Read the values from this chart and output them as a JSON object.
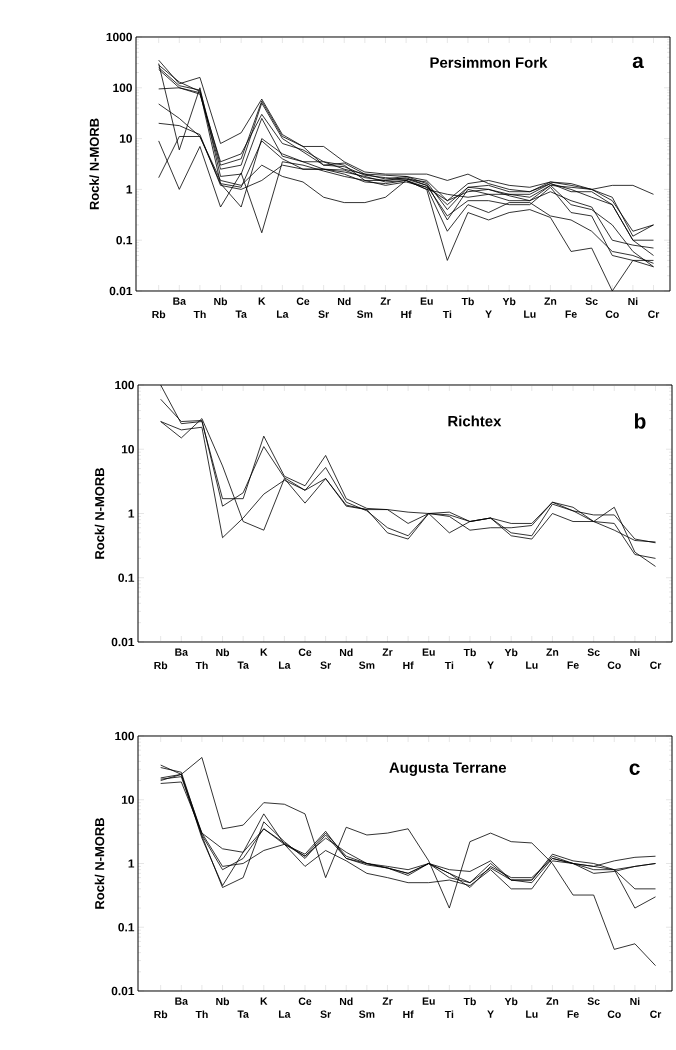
{
  "chart_data": [
    {
      "type": "line",
      "title": "Persimmon Fork",
      "ylabel": "Rock/ N-MORB",
      "annotations": [
        "a"
      ],
      "log": true,
      "marker": "none",
      "line_style": "solid",
      "categories": [
        "Rb",
        "Ba",
        "Th",
        "Nb",
        "Ta",
        "K",
        "La",
        "Ce",
        "Sr",
        "Nd",
        "Sm",
        "Zr",
        "Hf",
        "Eu",
        "Ti",
        "Tb",
        "Y",
        "Yb",
        "Lu",
        "Zn",
        "Fe",
        "Sc",
        "Co",
        "Ni",
        "Cr"
      ],
      "ylim": [
        0.01,
        1000
      ],
      "yticks": [
        0.01,
        0.1,
        1,
        10,
        100,
        1000
      ],
      "series": [
        {
          "color": "#000000",
          "values": [
            350,
            120,
            160,
            8,
            13,
            60,
            12,
            7,
            7,
            3.5,
            2.2,
            2.0,
            2.0,
            2.0,
            1.5,
            2.0,
            1.3,
            1.0,
            0.9,
            1.4,
            1.2,
            1.0,
            0.6,
            0.15,
            0.2
          ]
        },
        {
          "color": "#000000",
          "values": [
            250,
            110,
            90,
            3,
            4,
            55,
            11,
            7,
            3,
            3.3,
            2.0,
            1.9,
            1.8,
            1.5,
            0.6,
            1.3,
            1.5,
            1.2,
            1.1,
            1.4,
            1.3,
            1.0,
            0.7,
            0.12,
            0.2
          ]
        },
        {
          "color": "#000000",
          "values": [
            230,
            100,
            80,
            2.5,
            3,
            50,
            10,
            5.5,
            3,
            2.8,
            1.9,
            1.7,
            1.6,
            1.4,
            0.4,
            1.1,
            1.2,
            0.9,
            0.9,
            1.3,
            1.0,
            0.7,
            0.5,
            0.1,
            0.1
          ]
        },
        {
          "color": "#000000",
          "values": [
            95,
            100,
            75,
            3.5,
            5,
            30,
            8,
            6,
            3.5,
            2.5,
            2,
            1.6,
            1.8,
            1.3,
            0.25,
            1.0,
            0.8,
            0.8,
            0.7,
            1.2,
            0.5,
            0.4,
            0.2,
            0.06,
            0.03
          ]
        },
        {
          "color": "#000000",
          "values": [
            48,
            25,
            11,
            1.3,
            0.45,
            10,
            5,
            3.5,
            2.5,
            2.2,
            1.8,
            1.4,
            1.5,
            1.1,
            0.15,
            0.5,
            0.35,
            0.55,
            0.55,
            0.3,
            0.25,
            0.15,
            0.06,
            0.05,
            0.035
          ]
        },
        {
          "color": "#000000",
          "values": [
            20,
            18,
            12,
            1.2,
            1.0,
            1.5,
            3,
            2.5,
            2.5,
            2.0,
            1.4,
            1.3,
            1.5,
            1.0,
            0.04,
            0.35,
            0.25,
            0.35,
            0.4,
            0.28,
            0.06,
            0.07,
            0.01,
            0.04,
            0.04
          ]
        },
        {
          "color": "#000000",
          "values": [
            9,
            1.0,
            7,
            0.45,
            2.1,
            0.14,
            3.5,
            3,
            2.3,
            1.8,
            1.5,
            1.2,
            1.4,
            1.1,
            0.6,
            0.9,
            1.0,
            0.75,
            0.6,
            1.2,
            1.1,
            1.0,
            1.2,
            1.2,
            0.8
          ]
        },
        {
          "color": "#000000",
          "values": [
            1.7,
            11,
            11,
            1.5,
            1.2,
            3,
            1.8,
            1.4,
            0.7,
            0.55,
            0.55,
            0.7,
            1.5,
            1.0,
            0.8,
            0.7,
            0.8,
            0.6,
            0.6,
            0.9,
            0.6,
            0.45,
            0.1,
            0.08,
            0.07
          ]
        },
        {
          "color": "#000000",
          "values": [
            300,
            6,
            100,
            1.8,
            2.0,
            25,
            4.5,
            3.5,
            3.5,
            3.0,
            1.5,
            1.5,
            1.6,
            1.2,
            0.5,
            1.1,
            1.0,
            0.8,
            0.8,
            1.3,
            0.9,
            0.9,
            0.5,
            0.1,
            0.05
          ]
        },
        {
          "color": "#000000",
          "values": [
            280,
            130,
            85,
            1.3,
            1.1,
            9,
            4,
            2.5,
            2.5,
            2.4,
            1.7,
            1.5,
            1.7,
            1.2,
            0.3,
            0.6,
            0.6,
            0.5,
            0.5,
            1.1,
            0.35,
            0.3,
            0.05,
            0.04,
            0.03
          ]
        }
      ]
    },
    {
      "type": "line",
      "title": "Richtex",
      "ylabel": "Rock/ N-MORB",
      "annotations": [
        "b"
      ],
      "log": true,
      "marker": "none",
      "line_style": "solid",
      "categories": [
        "Rb",
        "Ba",
        "Th",
        "Nb",
        "Ta",
        "K",
        "La",
        "Ce",
        "Sr",
        "Nd",
        "Sm",
        "Zr",
        "Hf",
        "Eu",
        "Ti",
        "Tb",
        "Y",
        "Yb",
        "Lu",
        "Zn",
        "Fe",
        "Sc",
        "Co",
        "Ni",
        "Cr"
      ],
      "ylim": [
        0.01,
        100
      ],
      "yticks": [
        0.01,
        0.1,
        1,
        10,
        100
      ],
      "series": [
        {
          "color": "#000000",
          "values": [
            100,
            25,
            27,
            1.7,
            1.7,
            16,
            3.8,
            2.7,
            8,
            1.7,
            1.2,
            1.15,
            0.7,
            1.0,
            1.05,
            0.75,
            0.85,
            0.7,
            0.7,
            1.5,
            1.25,
            0.75,
            1.25,
            0.25,
            0.15
          ]
        },
        {
          "color": "#000000",
          "values": [
            60,
            27,
            28,
            1.3,
            2.1,
            11,
            3.6,
            2.3,
            5.2,
            1.5,
            1.1,
            0.6,
            0.45,
            1.0,
            0.9,
            0.55,
            0.6,
            0.6,
            0.65,
            1.5,
            1.1,
            0.95,
            0.95,
            0.4,
            0.35
          ]
        },
        {
          "color": "#000000",
          "values": [
            27,
            15,
            30,
            5.5,
            0.75,
            0.55,
            3.5,
            1.45,
            3.5,
            1.3,
            1.15,
            0.5,
            0.4,
            1.0,
            0.95,
            0.75,
            0.85,
            0.45,
            0.4,
            1.0,
            0.75,
            0.75,
            0.55,
            0.38,
            0.36
          ]
        },
        {
          "color": "#000000",
          "values": [
            27,
            20,
            22,
            0.42,
            0.85,
            2.0,
            3.3,
            2.3,
            3.5,
            1.35,
            1.15,
            1.15,
            1.05,
            1.0,
            0.5,
            0.75,
            0.85,
            0.5,
            0.45,
            1.4,
            1.1,
            0.75,
            0.7,
            0.23,
            0.2
          ]
        }
      ]
    },
    {
      "type": "line",
      "title": "Augusta Terrane",
      "ylabel": "Rock/ N-MORB",
      "annotations": [
        "c"
      ],
      "log": true,
      "marker": "none",
      "line_style": "solid",
      "categories": [
        "Rb",
        "Ba",
        "Th",
        "Nb",
        "Ta",
        "K",
        "La",
        "Ce",
        "Sr",
        "Nd",
        "Sm",
        "Zr",
        "Hf",
        "Eu",
        "Ti",
        "Tb",
        "Y",
        "Yb",
        "Lu",
        "Zn",
        "Fe",
        "Sc",
        "Co",
        "Ni",
        "Cr"
      ],
      "ylim": [
        0.01,
        100
      ],
      "yticks": [
        0.01,
        0.1,
        1,
        10,
        100
      ],
      "series": [
        {
          "color": "#000000",
          "values": [
            22,
            25,
            46,
            3.5,
            4,
            9,
            8.5,
            6,
            0.6,
            3.7,
            2.8,
            3,
            3.5,
            1.1,
            0.2,
            2.2,
            3,
            2.2,
            2.1,
            1.0,
            0.32,
            0.32,
            0.045,
            0.055,
            0.025
          ]
        },
        {
          "color": "#000000",
          "values": [
            35,
            25,
            3,
            1.7,
            1.5,
            3.5,
            2,
            1.3,
            3,
            1.3,
            1.0,
            0.9,
            0.8,
            1.0,
            0.8,
            0.75,
            1.1,
            0.55,
            0.55,
            1.4,
            1.1,
            1.0,
            0.8,
            0.4,
            0.4
          ]
        },
        {
          "color": "#000000",
          "values": [
            20,
            25,
            2.5,
            0.45,
            1.5,
            6,
            2,
            1.4,
            3.2,
            1.2,
            1.0,
            0.85,
            0.65,
            1.0,
            0.7,
            0.5,
            1.0,
            0.55,
            0.55,
            1.3,
            1.0,
            0.9,
            0.8,
            0.2,
            0.3
          ]
        },
        {
          "color": "#000000",
          "values": [
            18,
            19,
            3,
            0.9,
            1.0,
            1.6,
            2.0,
            0.9,
            1.6,
            1.1,
            0.7,
            0.6,
            0.5,
            0.5,
            0.55,
            0.45,
            0.8,
            0.4,
            0.4,
            1.1,
            1.0,
            0.9,
            1.1,
            1.25,
            1.3
          ]
        },
        {
          "color": "#000000",
          "values": [
            21,
            23,
            2.7,
            0.42,
            0.6,
            4.5,
            2.2,
            1.2,
            2.8,
            1.2,
            0.95,
            0.85,
            0.7,
            1.0,
            0.7,
            0.42,
            0.9,
            0.6,
            0.6,
            1.2,
            1.0,
            0.7,
            0.75,
            0.9,
            1.0
          ]
        },
        {
          "color": "#000000",
          "values": [
            32,
            27,
            2.8,
            0.8,
            1.2,
            3.5,
            2.1,
            1.3,
            2.5,
            1.5,
            1.0,
            0.85,
            0.7,
            1.0,
            0.6,
            0.5,
            0.85,
            0.55,
            0.5,
            1.2,
            1.0,
            0.8,
            0.8,
            0.9,
            1.0
          ]
        }
      ]
    }
  ]
}
